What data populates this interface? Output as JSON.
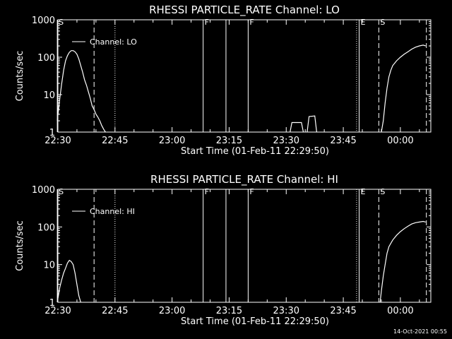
{
  "timestamp": "14-Oct-2021 00:55",
  "chart_data": [
    {
      "type": "line",
      "title": "RHESSI PARTICLE_RATE Channel: LO",
      "xlabel": "Start Time (01-Feb-11 22:29:50)",
      "ylabel": "Counts/sec",
      "y_scale": "log",
      "ylim": [
        1,
        1000
      ],
      "y_ticks": [
        "1",
        "10",
        "100",
        "1000"
      ],
      "xlim": [
        "22:30",
        "00:08"
      ],
      "x_ticks": [
        "22:30",
        "22:45",
        "23:00",
        "23:15",
        "23:30",
        "23:45",
        "00:00"
      ],
      "grid": false,
      "legend": {
        "position": "top-left",
        "entries": [
          "Channel: LO"
        ]
      },
      "series": [
        {
          "name": "Channel: LO",
          "segments": [
            [
              [
                "22:29:50",
                2
              ],
              [
                "22:30:30",
                8
              ],
              [
                "22:31:00",
                20
              ],
              [
                "22:31:30",
                45
              ],
              [
                "22:32:00",
                80
              ],
              [
                "22:32:30",
                110
              ],
              [
                "22:33:00",
                135
              ],
              [
                "22:33:30",
                150
              ],
              [
                "22:34:00",
                150
              ],
              [
                "22:34:30",
                140
              ],
              [
                "22:35:00",
                120
              ],
              [
                "22:35:30",
                90
              ],
              [
                "22:36:00",
                60
              ],
              [
                "22:36:30",
                40
              ],
              [
                "22:37:00",
                25
              ],
              [
                "22:37:30",
                18
              ],
              [
                "22:38:00",
                12
              ],
              [
                "22:38:30",
                8
              ],
              [
                "22:39:00",
                5
              ],
              [
                "22:39:30",
                4
              ],
              [
                "22:40:00",
                3
              ],
              [
                "22:40:30",
                2.5
              ],
              [
                "22:41:00",
                2
              ],
              [
                "22:41:30",
                1.5
              ],
              [
                "22:42:00",
                1.2
              ],
              [
                "22:42:30",
                1
              ]
            ],
            [
              [
                "23:31:00",
                1
              ],
              [
                "23:31:30",
                1.8
              ],
              [
                "23:34:00",
                1.8
              ],
              [
                "23:34:30",
                1
              ]
            ],
            [
              [
                "23:35:30",
                1
              ],
              [
                "23:36:00",
                2.6
              ],
              [
                "23:37:30",
                2.7
              ],
              [
                "23:38:00",
                1
              ]
            ],
            [
              [
                "23:55:00",
                1
              ],
              [
                "23:55:30",
                2
              ],
              [
                "23:56:00",
                6
              ],
              [
                "23:56:30",
                15
              ],
              [
                "23:57:00",
                30
              ],
              [
                "23:57:30",
                45
              ],
              [
                "23:58:00",
                60
              ],
              [
                "23:59:00",
                80
              ],
              [
                "00:00:00",
                100
              ],
              [
                "00:01:00",
                120
              ],
              [
                "00:02:00",
                140
              ],
              [
                "00:03:00",
                165
              ],
              [
                "00:04:00",
                185
              ],
              [
                "00:05:00",
                200
              ],
              [
                "00:06:00",
                210
              ],
              [
                "00:06:40",
                200
              ]
            ]
          ]
        }
      ],
      "markers": [
        {
          "label": "S",
          "time": "22:29:50",
          "style": "solid"
        },
        {
          "label": "",
          "time": "22:39:30",
          "style": "dashed"
        },
        {
          "label": "",
          "time": "22:45:00",
          "style": "dotted"
        },
        {
          "label": "F",
          "time": "23:08:10",
          "style": "solid"
        },
        {
          "label": "",
          "time": "23:14:10",
          "style": "solid"
        },
        {
          "label": "F",
          "time": "23:20:00",
          "style": "solid"
        },
        {
          "label": "",
          "time": "23:48:30",
          "style": "dotted"
        },
        {
          "label": "E",
          "time": "23:49:10",
          "style": "solid"
        },
        {
          "label": "S",
          "time": "23:54:20",
          "style": "dashed"
        },
        {
          "label": "",
          "time": "00:06:50",
          "style": "dashed"
        }
      ],
      "marker_colors": {
        "line": "#ffffff",
        "background": "#000000"
      }
    },
    {
      "type": "line",
      "title": "RHESSI PARTICLE_RATE Channel: HI",
      "xlabel": "Start Time (01-Feb-11 22:29:50)",
      "ylabel": "Counts/sec",
      "y_scale": "log",
      "ylim": [
        1,
        1000
      ],
      "y_ticks": [
        "1",
        "10",
        "100",
        "1000"
      ],
      "xlim": [
        "22:30",
        "00:08"
      ],
      "x_ticks": [
        "22:30",
        "22:45",
        "23:00",
        "23:15",
        "23:30",
        "23:45",
        "00:00"
      ],
      "grid": false,
      "legend": {
        "position": "top-left",
        "entries": [
          "Channel: HI"
        ]
      },
      "series": [
        {
          "name": "Channel: HI",
          "segments": [
            [
              [
                "22:29:50",
                1
              ],
              [
                "22:30:30",
                2.5
              ],
              [
                "22:31:00",
                4
              ],
              [
                "22:31:30",
                6
              ],
              [
                "22:32:00",
                8
              ],
              [
                "22:32:30",
                11
              ],
              [
                "22:33:00",
                13
              ],
              [
                "22:33:30",
                12
              ],
              [
                "22:34:00",
                10
              ],
              [
                "22:34:30",
                6
              ],
              [
                "22:35:00",
                3
              ],
              [
                "22:35:30",
                1.5
              ],
              [
                "22:36:00",
                1
              ]
            ],
            [
              [
                "23:54:40",
                1
              ],
              [
                "23:55:00",
                2
              ],
              [
                "23:55:30",
                5
              ],
              [
                "23:56:00",
                10
              ],
              [
                "23:56:30",
                20
              ],
              [
                "23:57:00",
                30
              ],
              [
                "23:58:00",
                45
              ],
              [
                "23:59:00",
                60
              ],
              [
                "00:00:00",
                75
              ],
              [
                "00:01:00",
                90
              ],
              [
                "00:02:00",
                105
              ],
              [
                "00:03:00",
                120
              ],
              [
                "00:04:00",
                130
              ],
              [
                "00:05:00",
                135
              ],
              [
                "00:06:00",
                140
              ],
              [
                "00:06:40",
                135
              ]
            ]
          ]
        }
      ],
      "markers": [
        {
          "label": "S",
          "time": "22:29:50",
          "style": "solid"
        },
        {
          "label": "",
          "time": "22:39:30",
          "style": "dashed"
        },
        {
          "label": "",
          "time": "22:45:00",
          "style": "dotted"
        },
        {
          "label": "F",
          "time": "23:08:10",
          "style": "solid"
        },
        {
          "label": "",
          "time": "23:14:10",
          "style": "solid"
        },
        {
          "label": "F",
          "time": "23:20:00",
          "style": "solid"
        },
        {
          "label": "",
          "time": "23:48:30",
          "style": "dotted"
        },
        {
          "label": "E",
          "time": "23:49:10",
          "style": "solid"
        },
        {
          "label": "S",
          "time": "23:54:20",
          "style": "dashed"
        },
        {
          "label": "",
          "time": "00:06:50",
          "style": "dashed"
        }
      ],
      "marker_colors": {
        "line": "#ffffff",
        "background": "#000000"
      }
    }
  ]
}
